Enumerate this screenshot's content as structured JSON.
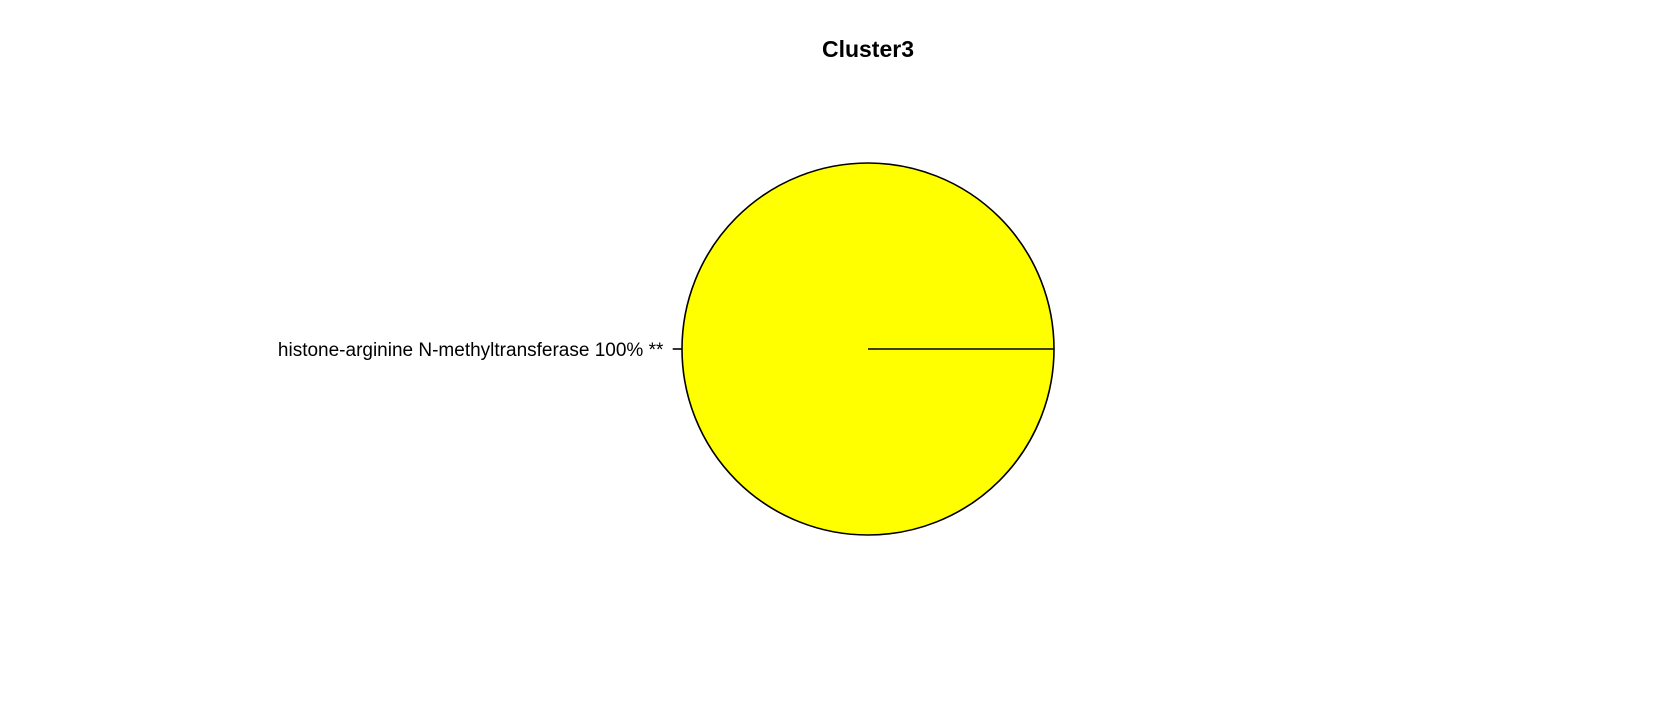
{
  "chart_data": {
    "type": "pie",
    "title": "Cluster3",
    "slices": [
      {
        "label": "histone-arginine N-methyltransferase 100% **",
        "value": 100,
        "color": "#ffff00"
      }
    ],
    "border_color": "#000000",
    "legend": "none"
  }
}
